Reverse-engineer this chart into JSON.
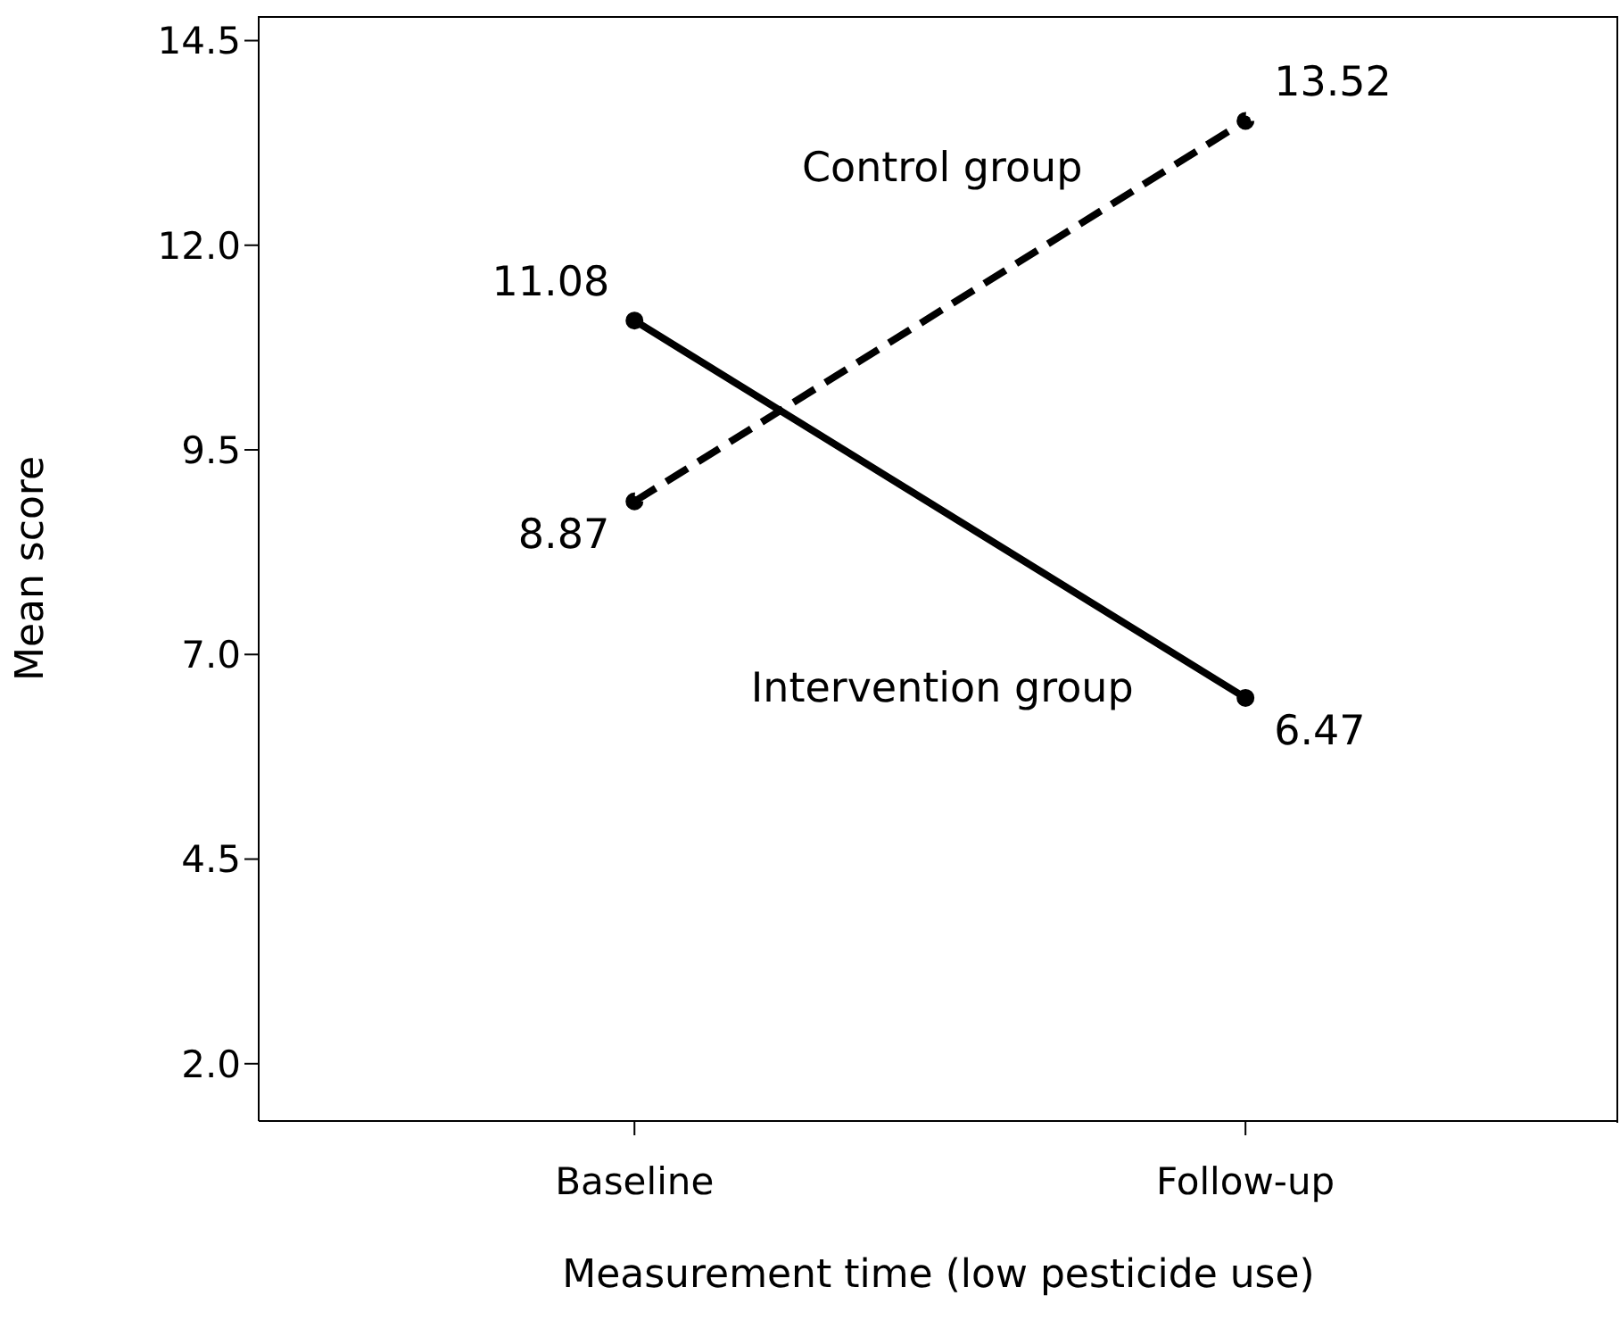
{
  "chart_data": {
    "type": "line",
    "xlabel": "Measurement time (low pesticide use)",
    "ylabel": "Mean score",
    "categories": [
      "Baseline",
      "Follow-up"
    ],
    "series": [
      {
        "name": "Control group",
        "color": "#000000",
        "values": [
          8.87,
          13.52
        ],
        "line_style": "dashed"
      },
      {
        "name": "Intervention group",
        "color": "#000000",
        "values": [
          11.08,
          6.47
        ],
        "line_style": "solid"
      }
    ],
    "ylim": [
      1.3,
      14.8
    ],
    "yticks": [
      {
        "value": 2,
        "label": "2.0"
      },
      4.5,
      {
        "value": 7,
        "label": "7.0"
      },
      9.5,
      {
        "value": 12,
        "label": "12.0"
      },
      14.5
    ],
    "marker": "circle",
    "data_labels": true,
    "grid": false
  }
}
